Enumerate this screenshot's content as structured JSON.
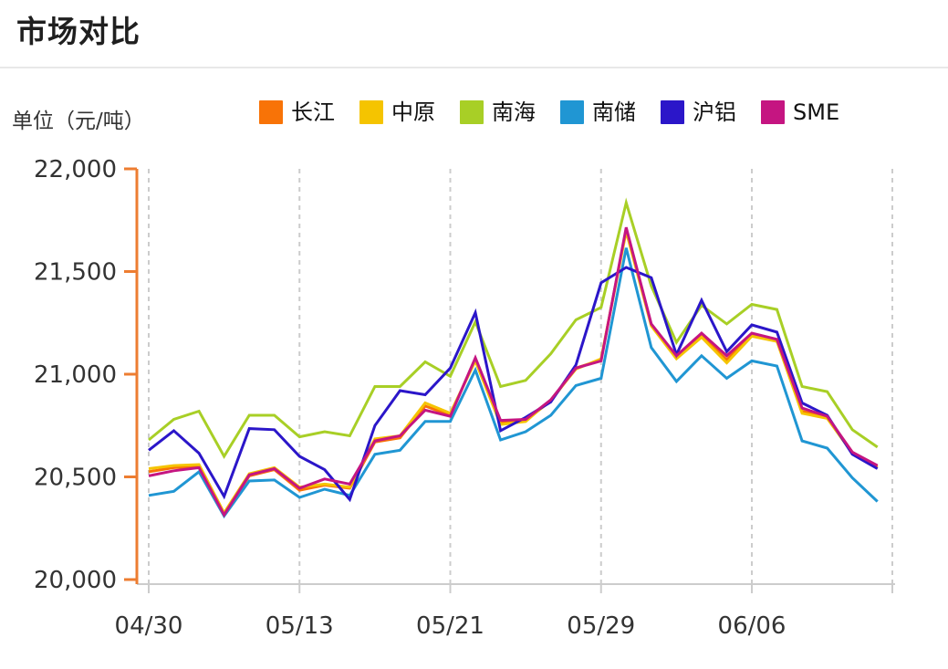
{
  "header": {
    "title": "市场对比"
  },
  "chart_header": {
    "unit_label": "单位（元/吨）"
  },
  "legend": {
    "items": [
      {
        "id": "changjiang",
        "label": "长江",
        "color": "#F87307"
      },
      {
        "id": "zhongyuan",
        "label": "中原",
        "color": "#F5C400"
      },
      {
        "id": "nanhai",
        "label": "南海",
        "color": "#A8CF26"
      },
      {
        "id": "nanchu",
        "label": "南储",
        "color": "#2096D3"
      },
      {
        "id": "hulv",
        "label": "沪铝",
        "color": "#2B16C9"
      },
      {
        "id": "sme",
        "label": "SME",
        "color": "#C51581"
      }
    ]
  },
  "chart_data": {
    "type": "line",
    "title": "市场对比",
    "unit": "单位（元/吨）",
    "ylim": [
      20000,
      22000
    ],
    "y_ticks": [
      22000,
      21500,
      21000,
      20500,
      20000
    ],
    "y_tick_labels": [
      "22,000",
      "21,500",
      "21,000",
      "20,500",
      "20,000"
    ],
    "x_tick_labels": [
      "04/30",
      "05/13",
      "05/21",
      "05/29",
      "06/06"
    ],
    "x_tick_point_indices": [
      0,
      6,
      12,
      18,
      24
    ],
    "num_points": 30,
    "grid": "vertical-dashed",
    "legend_position": "top",
    "colors": {
      "y_axis": "#ED7D31",
      "x_axis": "#CCCCCC",
      "gridline": "#CCCCCC",
      "axis_text": "#333333"
    },
    "series": [
      {
        "id": "changjiang",
        "name": "长江",
        "color": "#F87307",
        "values": [
          20525,
          20545,
          20550,
          20320,
          20505,
          20535,
          20435,
          20460,
          20445,
          20670,
          20690,
          20845,
          20800,
          21075,
          20765,
          20775,
          20870,
          21030,
          21070,
          21705,
          21240,
          21085,
          21190,
          21070,
          21195,
          21165,
          20820,
          20790,
          20620,
          20550
        ]
      },
      {
        "id": "zhongyuan",
        "name": "中原",
        "color": "#F5C400",
        "values": [
          20540,
          20555,
          20560,
          20325,
          20515,
          20545,
          20450,
          20465,
          20450,
          20685,
          20700,
          20860,
          20810,
          21065,
          20755,
          20770,
          20875,
          21025,
          21075,
          21695,
          21235,
          21075,
          21180,
          21055,
          21185,
          21160,
          20810,
          20785,
          20615,
          20545
        ]
      },
      {
        "id": "nanhai",
        "name": "南海",
        "color": "#A8CF26",
        "values": [
          20680,
          20780,
          20820,
          20600,
          20800,
          20800,
          20695,
          20720,
          20700,
          20940,
          20940,
          21060,
          20990,
          21255,
          20940,
          20970,
          21100,
          21265,
          21325,
          21835,
          21430,
          21155,
          21335,
          21245,
          21340,
          21315,
          20940,
          20915,
          20730,
          20645
        ]
      },
      {
        "id": "nanchu",
        "name": "南储",
        "color": "#2096D3",
        "values": [
          20410,
          20430,
          20525,
          20310,
          20480,
          20485,
          20400,
          20440,
          20410,
          20610,
          20630,
          20770,
          20770,
          21020,
          20680,
          20720,
          20800,
          20945,
          20980,
          21615,
          21130,
          20965,
          21090,
          20980,
          21065,
          21040,
          20675,
          20640,
          20495,
          20380
        ]
      },
      {
        "id": "hulv",
        "name": "沪铝",
        "color": "#2B16C9",
        "values": [
          20630,
          20725,
          20615,
          20405,
          20735,
          20730,
          20600,
          20535,
          20390,
          20750,
          20920,
          20900,
          21030,
          21300,
          20725,
          20790,
          20865,
          21045,
          21445,
          21520,
          21470,
          21095,
          21360,
          21110,
          21240,
          21205,
          20860,
          20800,
          20610,
          20540
        ]
      },
      {
        "id": "sme",
        "name": "SME",
        "color": "#C51581",
        "values": [
          20505,
          20530,
          20545,
          20315,
          20510,
          20540,
          20445,
          20490,
          20465,
          20675,
          20700,
          20825,
          20795,
          21080,
          20775,
          20780,
          20875,
          21030,
          21065,
          21715,
          21245,
          21090,
          21200,
          21090,
          21200,
          21170,
          20835,
          20795,
          20620,
          20555
        ]
      }
    ]
  }
}
